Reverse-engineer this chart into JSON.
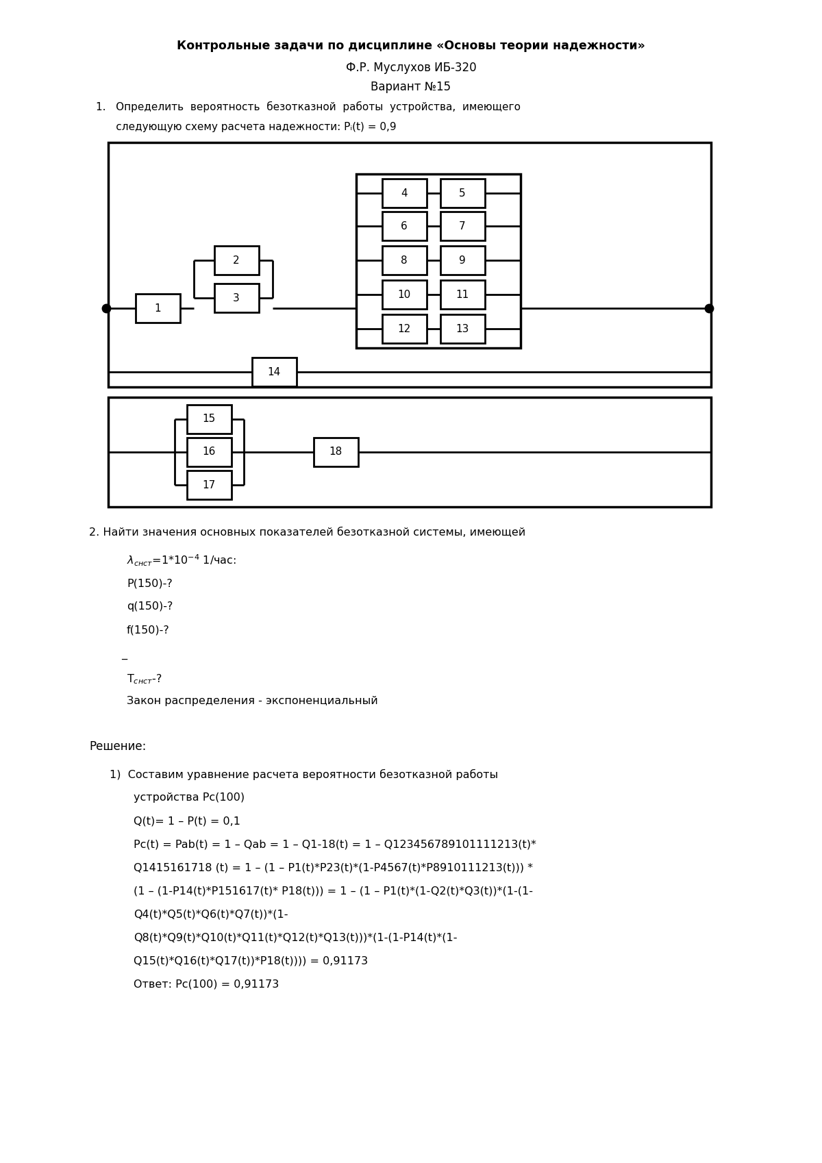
{
  "title_line1": "Контрольные задачи по дисциплине «Основы теории надежности»",
  "title_line2": "Ф.Р. Муслухов ИБ-320",
  "title_line3": "Вариант №15",
  "task1_line1": "1.   Определить  вероятность  безотказной  работы  устройства,  имеющего",
  "task1_line2": "      следующую схему расчета надежности: Pᵢ(t) = 0,9",
  "background_color": "#ffffff",
  "box_color": "#000000"
}
